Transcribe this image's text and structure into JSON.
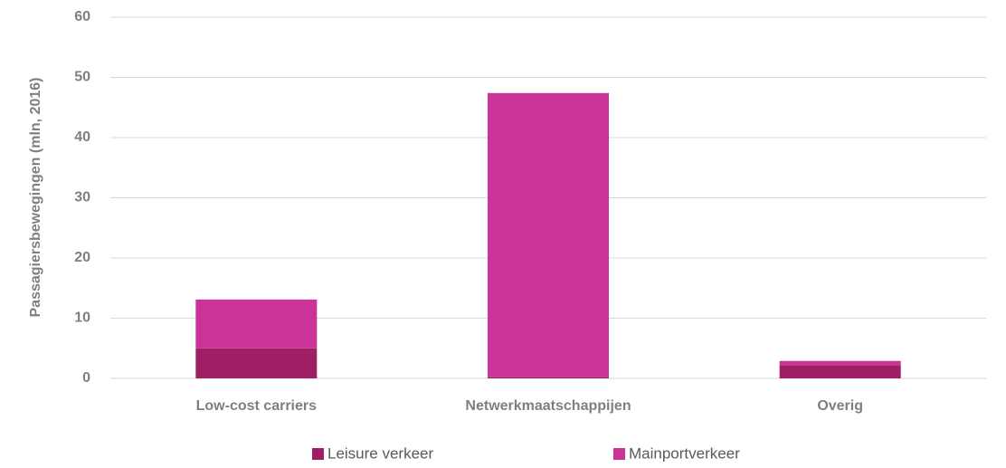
{
  "chart_data": {
    "type": "stacked_bar",
    "y_label": "Passagiersbewegingen (mln, 2016)",
    "categories": [
      "Low-cost carriers",
      "Netwerkmaatschappijen",
      "Overig"
    ],
    "series": [
      {
        "name": "Leisure verkeer",
        "color": "#9e1f63",
        "values": [
          5.0,
          0.2,
          2.2
        ]
      },
      {
        "name": "Mainportverkeer",
        "color": "#cc3399",
        "values": [
          8.1,
          47.2,
          0.7
        ]
      }
    ],
    "ylim": [
      0,
      60
    ],
    "yticks": [
      0,
      10,
      20,
      30,
      40,
      50,
      60
    ],
    "grid": true,
    "legend": "bottom"
  }
}
